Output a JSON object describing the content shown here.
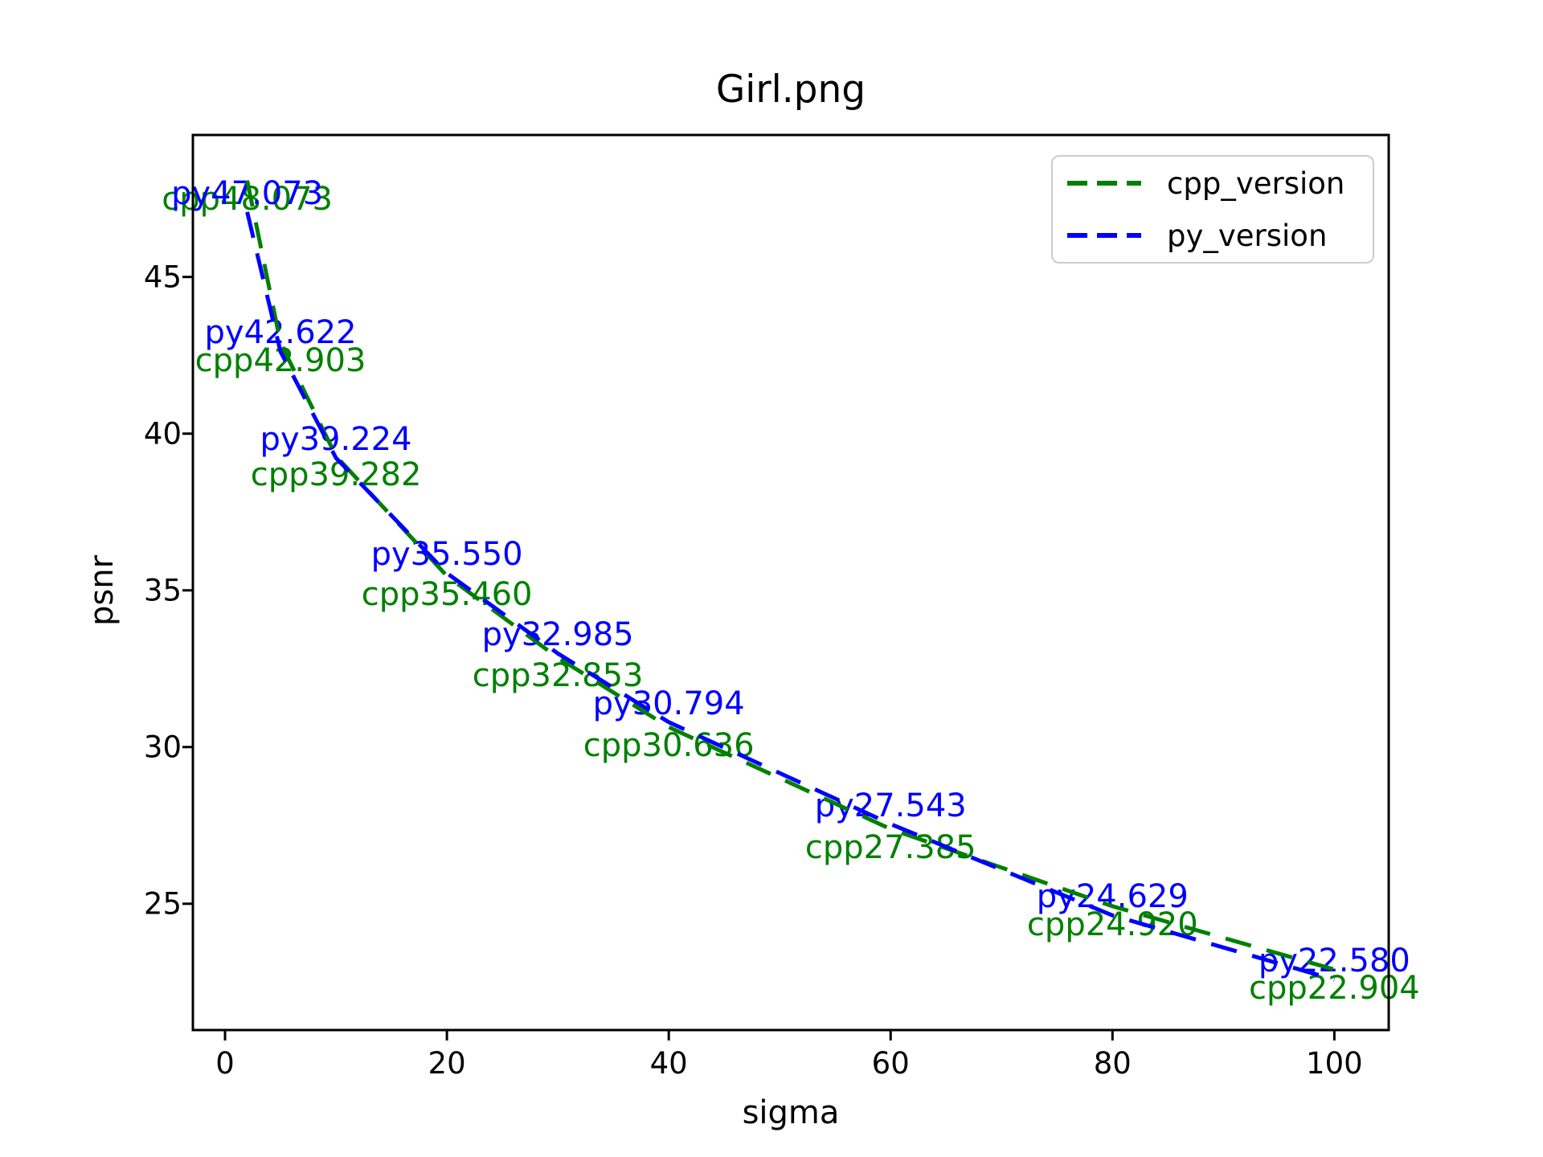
{
  "chart_data": {
    "type": "line",
    "title": "Girl.png",
    "xlabel": "sigma",
    "ylabel": "psnr",
    "x": [
      2,
      5,
      10,
      20,
      30,
      40,
      60,
      80,
      100
    ],
    "series": [
      {
        "name": "cpp_version",
        "color": "#008000",
        "linestyle": "dashed",
        "values": [
          48.073,
          42.903,
          39.282,
          35.46,
          32.853,
          30.636,
          27.385,
          24.92,
          22.904
        ],
        "point_labels": [
          "cpp48.073",
          "cpp42.903",
          "cpp39.282",
          "cpp35.460",
          "cpp32.853",
          "cpp30.636",
          "cpp27.385",
          "cpp24.920",
          "cpp22.904"
        ],
        "label_placement": "below"
      },
      {
        "name": "py_version",
        "color": "#0000ff",
        "linestyle": "dashed",
        "values": [
          47.073,
          42.622,
          39.224,
          35.55,
          32.985,
          30.794,
          27.543,
          24.629,
          22.58
        ],
        "point_labels": [
          "py47.073",
          "py42.622",
          "py39.224",
          "py35.550",
          "py32.985",
          "py30.794",
          "py27.543",
          "py24.629",
          "py22.580"
        ],
        "label_placement": "above"
      }
    ],
    "xlim": [
      -2.9,
      104.9
    ],
    "ylim": [
      20.97,
      49.53
    ],
    "xticks": [
      0,
      20,
      40,
      60,
      80,
      100
    ],
    "yticks": [
      25,
      30,
      35,
      40,
      45
    ],
    "xtick_labels": [
      "0",
      "20",
      "40",
      "60",
      "80",
      "100"
    ],
    "ytick_labels": [
      "25",
      "30",
      "35",
      "40",
      "45"
    ],
    "grid": false,
    "legend_position": "upper right",
    "background_color": "#ffffff",
    "spine_color": "#000000"
  }
}
